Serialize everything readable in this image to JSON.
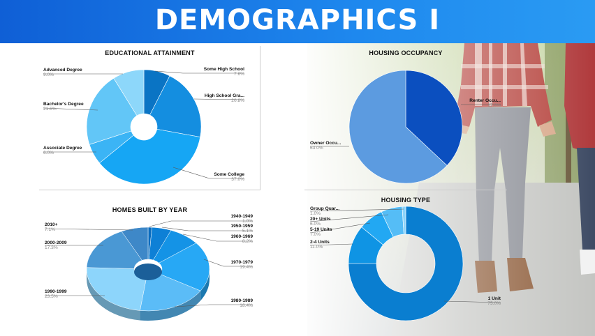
{
  "banner": {
    "title": "DEMOGRAPHICS I"
  },
  "colors": {
    "banner_start": "#0f5fd6",
    "banner_end": "#2a9bf3"
  },
  "chart_data": [
    {
      "type": "pie",
      "variant": "donut",
      "title": "EDUCATIONAL ATTAINMENT",
      "slices": [
        {
          "label": "Some High School",
          "value": 7.6,
          "value_text": "7.6%",
          "color": "#0a74c4"
        },
        {
          "label": "High School Gra...",
          "value": 20.8,
          "value_text": "20.8%",
          "color": "#148ee0"
        },
        {
          "label": "Some College",
          "value": 37.0,
          "value_text": "37.0%",
          "color": "#16a6f4"
        },
        {
          "label": "Associate Degree",
          "value": 6.0,
          "value_text": "6.0%",
          "color": "#3bb4f5"
        },
        {
          "label": "Bachelor's Degree",
          "value": 21.6,
          "value_text": "21.6%",
          "color": "#62c6f7"
        },
        {
          "label": "Advanced Degree",
          "value": 9.0,
          "value_text": "9.0%",
          "color": "#8dd7fa"
        }
      ]
    },
    {
      "type": "pie",
      "title": "HOUSING OCCUPANCY",
      "slices": [
        {
          "label": "Renter Occu...",
          "value": 37.0,
          "value_text": "37.0%",
          "color": "#0b4fbf"
        },
        {
          "label": "Owner Occu...",
          "value": 63.0,
          "value_text": "63.0%",
          "color": "#5c9be0"
        }
      ]
    },
    {
      "type": "pie",
      "variant": "3d-donut",
      "title": "HOMES BUILT BY YEAR",
      "slices": [
        {
          "label": "1940-1949",
          "value": 1.0,
          "value_text": "1.0%",
          "color": "#0a6cbf"
        },
        {
          "label": "1950-1959",
          "value": 5.1,
          "value_text": "5.1%",
          "color": "#0e80d6"
        },
        {
          "label": "1960-1969",
          "value": 8.2,
          "value_text": "8.2%",
          "color": "#1493e6"
        },
        {
          "label": "1970-1979",
          "value": 19.4,
          "value_text": "19.4%",
          "color": "#27a8f5"
        },
        {
          "label": "1980-1989",
          "value": 18.4,
          "value_text": "18.4%",
          "color": "#5bbcf7"
        },
        {
          "label": "1990-1999",
          "value": 23.5,
          "value_text": "23.5%",
          "color": "#8dd5fb"
        },
        {
          "label": "2000-2009",
          "value": 17.3,
          "value_text": "17.3%",
          "color": "#4a98d4"
        },
        {
          "label": "2010+",
          "value": 7.1,
          "value_text": "7.1%",
          "color": "#3e88c8"
        }
      ]
    },
    {
      "type": "pie",
      "variant": "donut",
      "title": "HOUSING TYPE",
      "slices": [
        {
          "label": "1 Unit",
          "value": 75.0,
          "value_text": "75.0%",
          "color": "#0a7ed0"
        },
        {
          "label": "2-4 Units",
          "value": 11.0,
          "value_text": "11.0%",
          "color": "#0f94e4"
        },
        {
          "label": "5-19 Units",
          "value": 7.0,
          "value_text": "7.0%",
          "color": "#22a8f3"
        },
        {
          "label": "20+ Units",
          "value": 6.0,
          "value_text": "6.0%",
          "color": "#55bdf6"
        },
        {
          "label": "Group Quar...",
          "value": 1.0,
          "value_text": "1.0%",
          "color": "#8dd5fb"
        }
      ]
    }
  ]
}
